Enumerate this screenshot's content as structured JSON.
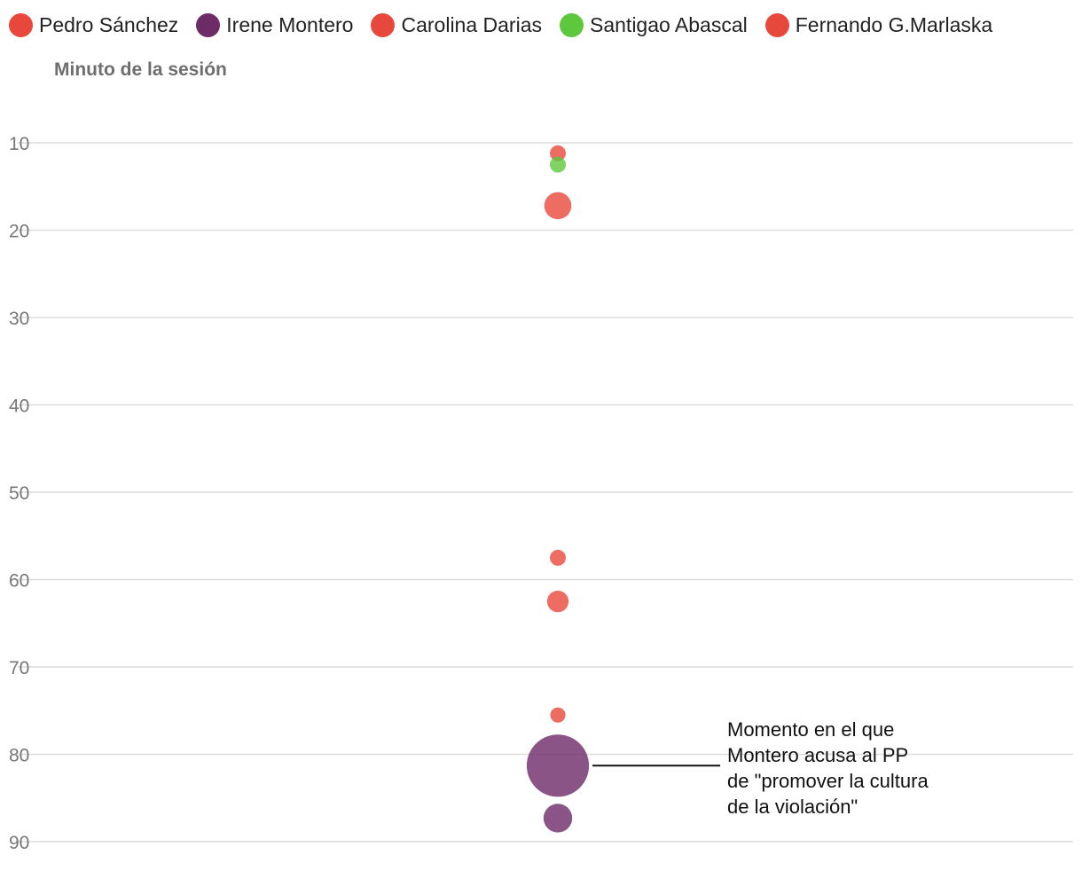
{
  "chart_data": {
    "type": "scatter",
    "ylabel": "Minuto de la sesión",
    "y_ticks": [
      10,
      20,
      30,
      40,
      50,
      60,
      70,
      80,
      90
    ],
    "ylim": [
      1.5,
      93
    ],
    "y_inverted": true,
    "grid": "horizontal",
    "legend_position": "top",
    "series": [
      {
        "name": "Pedro Sánchez",
        "color": "#e8483b"
      },
      {
        "name": "Irene Montero",
        "color": "#6d2b68"
      },
      {
        "name": "Carolina Darias",
        "color": "#e8483b"
      },
      {
        "name": "Santigao Abascal",
        "color": "#5ec83c"
      },
      {
        "name": "Fernando G.Marlaska",
        "color": "#e8483b"
      }
    ],
    "points": [
      {
        "series": "Pedro Sánchez",
        "y": 11.2,
        "size": 1.0
      },
      {
        "series": "Santigao Abascal",
        "y": 12.5,
        "size": 1.0
      },
      {
        "series": "Carolina Darias",
        "y": 17.2,
        "size": 1.7
      },
      {
        "series": "Fernando G.Marlaska",
        "y": 57.5,
        "size": 1.0
      },
      {
        "series": "Pedro Sánchez",
        "y": 62.5,
        "size": 1.35
      },
      {
        "series": "Fernando G.Marlaska",
        "y": 75.5,
        "size": 0.95
      },
      {
        "series": "Irene Montero",
        "y": 81.3,
        "size": 3.9
      },
      {
        "series": "Irene Montero",
        "y": 87.3,
        "size": 1.8
      }
    ],
    "annotations": [
      {
        "y": 81.3,
        "lines": [
          "Momento en el que",
          "Montero acusa al PP",
          "de \"promover la cultura",
          "de la violación\""
        ]
      }
    ]
  }
}
